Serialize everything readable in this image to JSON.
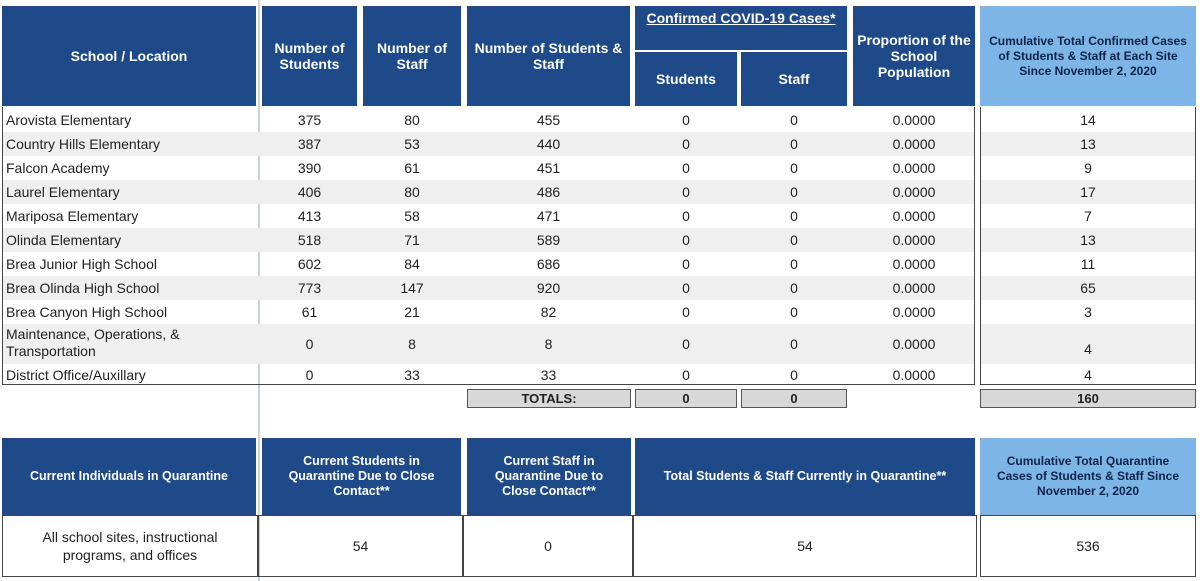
{
  "headers": {
    "school": "School / Location",
    "num_students": "Number of Students",
    "num_staff": "Number of Staff",
    "num_students_staff": "Number of Students & Staff",
    "covid": "Confirmed COVID-19 Cases*",
    "covid_students": "Students",
    "covid_staff": "Staff",
    "proportion": "Proportion of the School Population",
    "cumulative": "Cumulative Total Confirmed Cases of Students & Staff at Each Site Since November 2, 2020"
  },
  "rows": [
    {
      "school": "Arovista Elementary",
      "students": "375",
      "staff": "80",
      "total": "455",
      "c_students": "0",
      "c_staff": "0",
      "proportion": "0.0000",
      "cumulative": "14"
    },
    {
      "school": "Country Hills Elementary",
      "students": "387",
      "staff": "53",
      "total": "440",
      "c_students": "0",
      "c_staff": "0",
      "proportion": "0.0000",
      "cumulative": "13"
    },
    {
      "school": "Falcon Academy",
      "students": "390",
      "staff": "61",
      "total": "451",
      "c_students": "0",
      "c_staff": "0",
      "proportion": "0.0000",
      "cumulative": "9"
    },
    {
      "school": "Laurel Elementary",
      "students": "406",
      "staff": "80",
      "total": "486",
      "c_students": "0",
      "c_staff": "0",
      "proportion": "0.0000",
      "cumulative": "17"
    },
    {
      "school": "Mariposa Elementary",
      "students": "413",
      "staff": "58",
      "total": "471",
      "c_students": "0",
      "c_staff": "0",
      "proportion": "0.0000",
      "cumulative": "7"
    },
    {
      "school": "Olinda Elementary",
      "students": "518",
      "staff": "71",
      "total": "589",
      "c_students": "0",
      "c_staff": "0",
      "proportion": "0.0000",
      "cumulative": "13"
    },
    {
      "school": "Brea Junior High School",
      "students": "602",
      "staff": "84",
      "total": "686",
      "c_students": "0",
      "c_staff": "0",
      "proportion": "0.0000",
      "cumulative": "11"
    },
    {
      "school": "Brea Olinda High School",
      "students": "773",
      "staff": "147",
      "total": "920",
      "c_students": "0",
      "c_staff": "0",
      "proportion": "0.0000",
      "cumulative": "65"
    },
    {
      "school": "Brea Canyon High School",
      "students": "61",
      "staff": "21",
      "total": "82",
      "c_students": "0",
      "c_staff": "0",
      "proportion": "0.0000",
      "cumulative": "3"
    },
    {
      "school": "Maintenance, Operations, & Transportation",
      "students": "0",
      "staff": "8",
      "total": "8",
      "c_students": "0",
      "c_staff": "0",
      "proportion": "0.0000",
      "cumulative": "4"
    },
    {
      "school": "District Office/Auxillary",
      "students": "0",
      "staff": "33",
      "total": "33",
      "c_students": "0",
      "c_staff": "0",
      "proportion": "0.0000",
      "cumulative": "4"
    }
  ],
  "totals": {
    "label": "TOTALS:",
    "c_students": "0",
    "c_staff": "0",
    "cumulative": "160"
  },
  "quarantine": {
    "h_current": "Current Individuals in Quarantine",
    "h_students": "Current Students in Quarantine Due to Close Contact**",
    "h_staff": "Current Staff in Quarantine Due to Close Contact**",
    "h_total": "Total Students & Staff Currently in Quarantine**",
    "h_cumulative": "Cumulative Total Quarantine Cases of Students & Staff Since November 2, 2020",
    "scope": "All school sites, instructional programs, and offices",
    "students": "54",
    "staff": "0",
    "total": "54",
    "cumulative": "536"
  }
}
